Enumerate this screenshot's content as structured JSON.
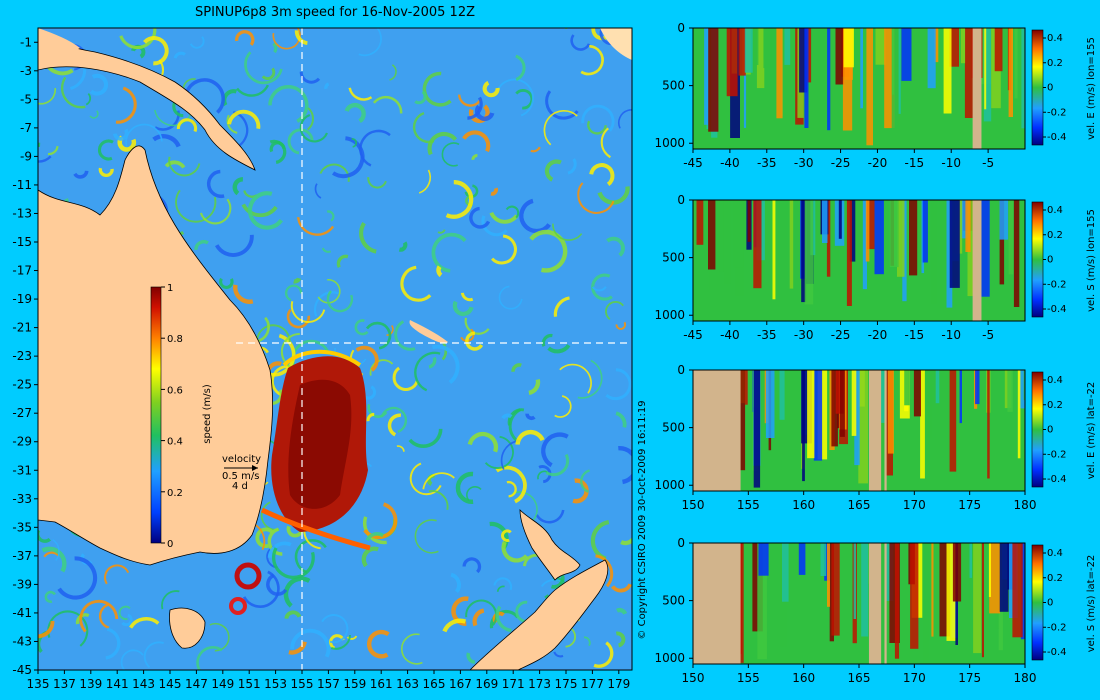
{
  "title": "SPINUP6p8 3m speed for 16-Nov-2005 12Z",
  "copyright": "© Copyright CSIRO 2009  30-Oct-2009 16:11:19",
  "map": {
    "lon_ticks": [
      "135",
      "137",
      "139",
      "141",
      "143",
      "145",
      "147",
      "149",
      "151",
      "153",
      "155",
      "157",
      "159",
      "161",
      "163",
      "165",
      "167",
      "169",
      "171",
      "173",
      "175",
      "177",
      "179"
    ],
    "lat_ticks": [
      "-1",
      "-3",
      "-5",
      "-7",
      "-9",
      "-11",
      "-13",
      "-15",
      "-17",
      "-19",
      "-21",
      "-23",
      "-25",
      "-27",
      "-29",
      "-31",
      "-33",
      "-35",
      "-37",
      "-39",
      "-41",
      "-43",
      "-45"
    ],
    "lon_range": [
      135,
      180
    ],
    "lat_range": [
      -45,
      0
    ],
    "section_lon": 155,
    "section_lat": -22,
    "colorbar": {
      "label": "speed (m/s)",
      "ticks": [
        "1",
        "0.8",
        "0.6",
        "0.4",
        "0.2",
        "0"
      ],
      "range": [
        0,
        1
      ]
    },
    "vector_key": {
      "label": "velocity",
      "speed": "0.5 m/s",
      "duration": "4 d"
    },
    "colors": {
      "land": "#ffcc99",
      "ocean_base": "#3fa0f0"
    }
  },
  "panels": [
    {
      "label": "vel. E (m/s) lon=155",
      "x_ticks": [
        "-45",
        "-40",
        "-35",
        "-30",
        "-25",
        "-20",
        "-15",
        "-10",
        "-5"
      ],
      "x_range": [
        -45,
        0
      ],
      "y_ticks": [
        "0",
        "500",
        "1000"
      ],
      "y_range": [
        0,
        1050
      ],
      "cb_ticks": [
        "0.4",
        "0.2",
        "0",
        "-0.2",
        "-0.4"
      ]
    },
    {
      "label": "vel. S (m/s) lon=155",
      "x_ticks": [
        "-45",
        "-40",
        "-35",
        "-30",
        "-25",
        "-20",
        "-15",
        "-10",
        "-5"
      ],
      "x_range": [
        -45,
        0
      ],
      "y_ticks": [
        "0",
        "500",
        "1000"
      ],
      "y_range": [
        0,
        1050
      ],
      "cb_ticks": [
        "0.4",
        "0.2",
        "0",
        "-0.2",
        "-0.4"
      ]
    },
    {
      "label": "vel. E (m/s) lat=-22",
      "x_ticks": [
        "150",
        "155",
        "160",
        "165",
        "170",
        "175",
        "180"
      ],
      "x_range": [
        150,
        180
      ],
      "y_ticks": [
        "0",
        "500",
        "1000"
      ],
      "y_range": [
        0,
        1050
      ],
      "cb_ticks": [
        "0.4",
        "0.2",
        "0",
        "-0.2",
        "-0.4"
      ]
    },
    {
      "label": "vel. S (m/s) lat=-22",
      "x_ticks": [
        "150",
        "155",
        "160",
        "165",
        "170",
        "175",
        "180"
      ],
      "x_range": [
        150,
        180
      ],
      "y_ticks": [
        "0",
        "500",
        "1000"
      ],
      "y_range": [
        0,
        1050
      ],
      "cb_ticks": [
        "0.4",
        "0.2",
        "0",
        "-0.2",
        "-0.4"
      ]
    }
  ]
}
